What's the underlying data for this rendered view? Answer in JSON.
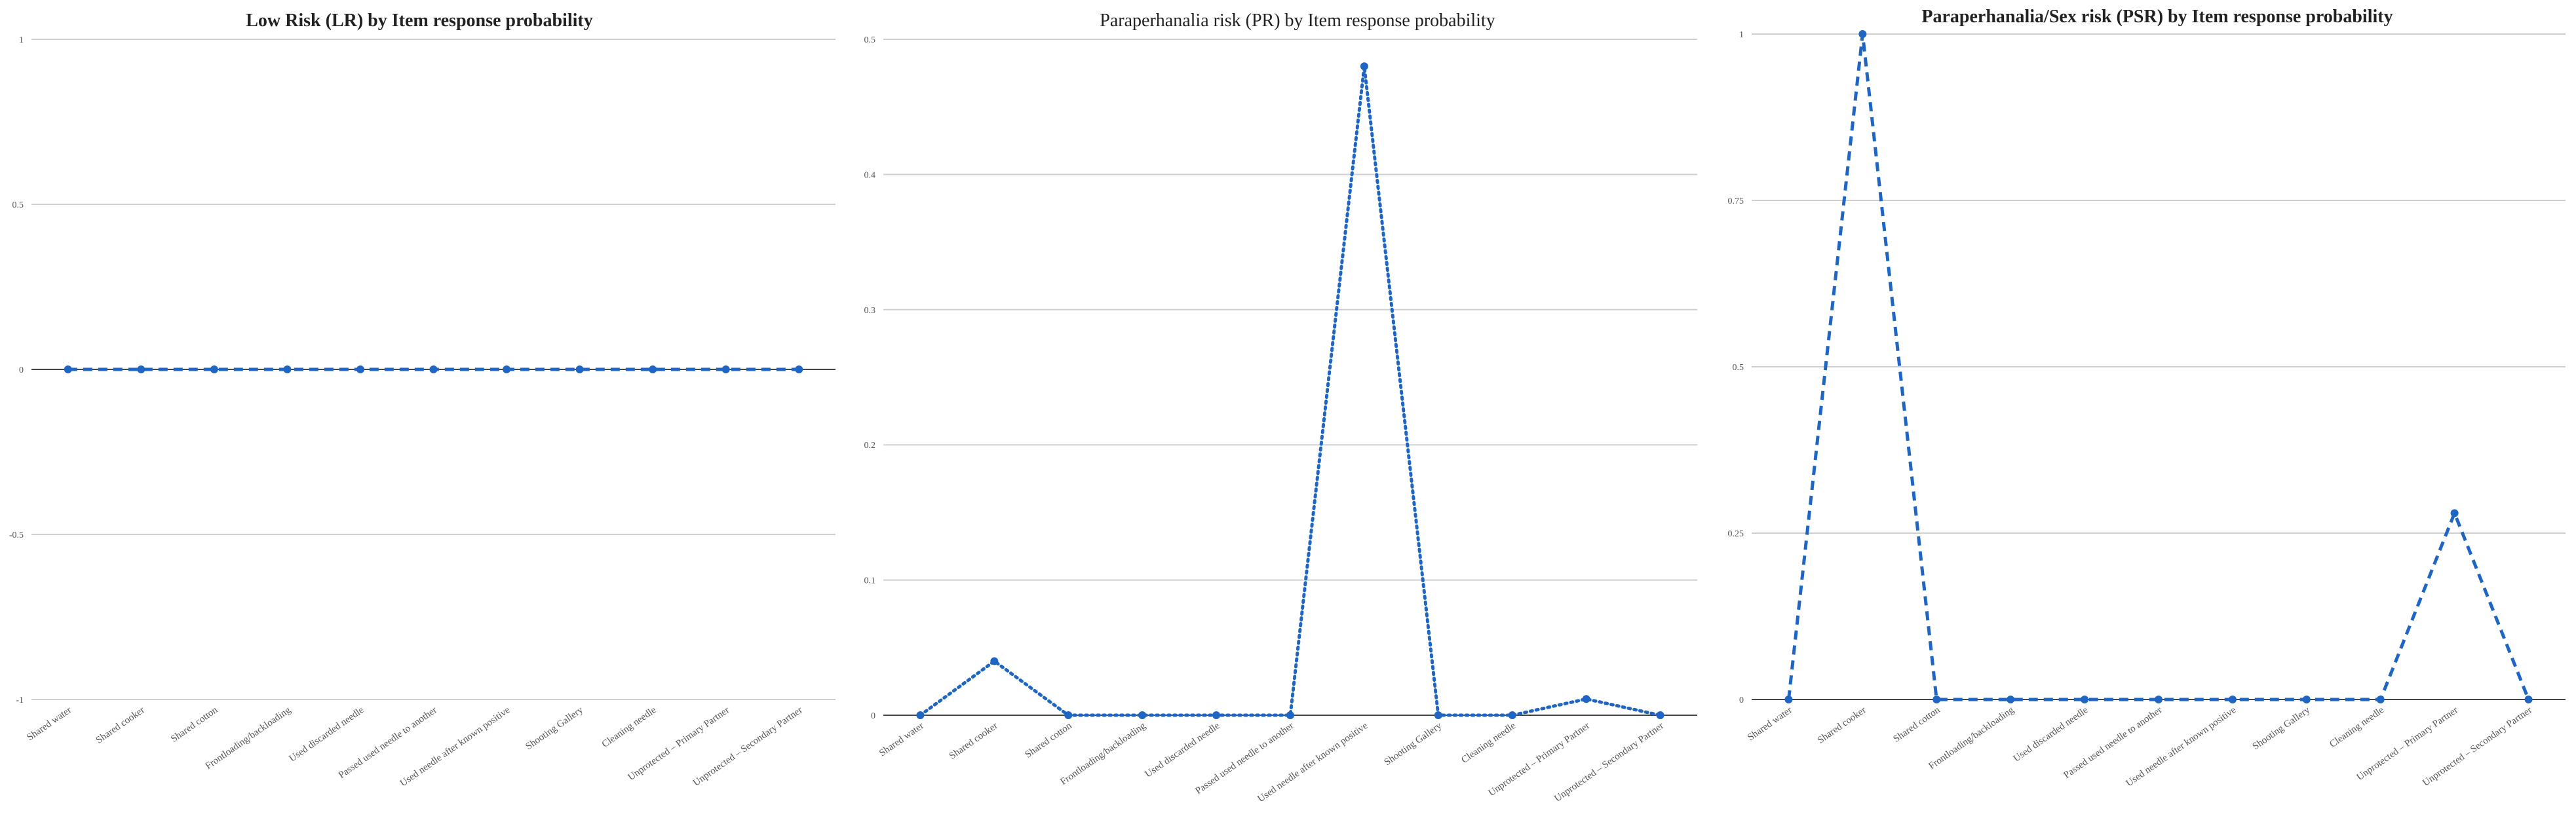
{
  "chart_data": [
    {
      "type": "line",
      "title": "Low Risk (LR) by Item response probability",
      "title_bold": true,
      "categories": [
        "Shared water",
        "Shared cooker",
        "Shared cotton",
        "Frontloading/backloading",
        "Used discarded needle",
        "Passed used needle to another",
        "Used needle after known positive",
        "Shooting Gallery",
        "Cleaning needle",
        "Unprotected – Primary Partner",
        "Unprotected – Secondary Partner"
      ],
      "series": [
        {
          "values": [
            0,
            0,
            0,
            0,
            0,
            0,
            0,
            0,
            0,
            0,
            0
          ]
        }
      ],
      "ylim": [
        -1,
        1
      ],
      "yticks": [
        -1,
        -0.5,
        0,
        0.5,
        1
      ],
      "ytick_labels": [
        "-1",
        "-0.5",
        "0",
        "0.5",
        "1"
      ],
      "line_style": "dashed",
      "markers": true,
      "color": "#1f66c4",
      "grid": true
    },
    {
      "type": "line",
      "title": "Paraperhanalia risk (PR) by Item response probability",
      "title_bold": false,
      "categories": [
        "Shared water",
        "Shared cooker",
        "Shared cotton",
        "Frontloading/backloading",
        "Used discarded needle",
        "Passed used needle to another",
        "Used needle after known positive",
        "Shooting Gallery",
        "Cleaning needle",
        "Unprotected – Primary Partner",
        "Unprotected – Secondary Partner"
      ],
      "series": [
        {
          "values": [
            0,
            0.04,
            0,
            0,
            0,
            0,
            0.48,
            0,
            0,
            0.012,
            0
          ]
        }
      ],
      "ylim": [
        0,
        0.5
      ],
      "yticks": [
        0,
        0.1,
        0.2,
        0.3,
        0.4,
        0.5
      ],
      "ytick_labels": [
        "0",
        "0.1",
        "0.2",
        "0.3",
        "0.4",
        "0.5"
      ],
      "line_style": "dotted",
      "markers": true,
      "color": "#1f66c4",
      "grid": true
    },
    {
      "type": "line",
      "title": "Paraperhanalia/Sex risk (PSR) by Item response probability",
      "title_bold": true,
      "categories": [
        "Shared water",
        "Shared cooker",
        "Shared cotton",
        "Frontloading/backloading",
        "Used discarded needle",
        "Passed used needle to another",
        "Used needle after known positive",
        "Shooting Gallery",
        "Cleaning needle",
        "Unprotected – Primary Partner",
        "Unprotected – Secondary Partner"
      ],
      "series": [
        {
          "values": [
            0,
            1,
            0,
            0,
            0,
            0,
            0,
            0,
            0,
            0.28,
            0
          ]
        }
      ],
      "ylim": [
        0,
        1
      ],
      "yticks": [
        0,
        0.25,
        0.5,
        0.75,
        1
      ],
      "ytick_labels": [
        "0",
        "0.25",
        "0.5",
        "0.75",
        "1"
      ],
      "line_style": "dashed",
      "markers": true,
      "color": "#1f66c4",
      "grid": true
    }
  ]
}
